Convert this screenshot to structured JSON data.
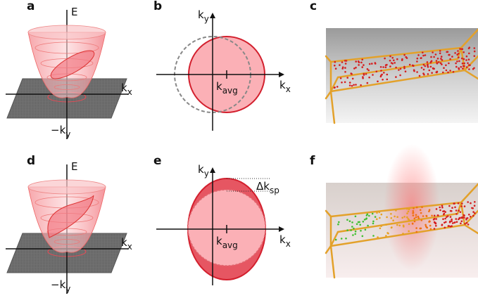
{
  "panels": {
    "a": {
      "label": "a",
      "energy": "E",
      "kx": {
        "main": "k",
        "sub": "x"
      },
      "ky": {
        "main": "−k",
        "sub": "y"
      }
    },
    "b": {
      "label": "b",
      "ky": {
        "main": "k",
        "sub": "y"
      },
      "kx": {
        "main": "k",
        "sub": "x"
      },
      "kavg": {
        "main": "k",
        "sub": "avg"
      }
    },
    "c": {
      "label": "c"
    },
    "d": {
      "label": "d",
      "energy": "E",
      "kx": {
        "main": "k",
        "sub": "x"
      },
      "ky": {
        "main": "−k",
        "sub": "y"
      }
    },
    "e": {
      "label": "e",
      "ky": {
        "main": "k",
        "sub": "y"
      },
      "kx": {
        "main": "k",
        "sub": "x"
      },
      "kavg": {
        "main": "k",
        "sub": "avg"
      },
      "dksp": {
        "main": "Δk",
        "sub": "sp"
      }
    },
    "f": {
      "label": "f"
    }
  }
}
